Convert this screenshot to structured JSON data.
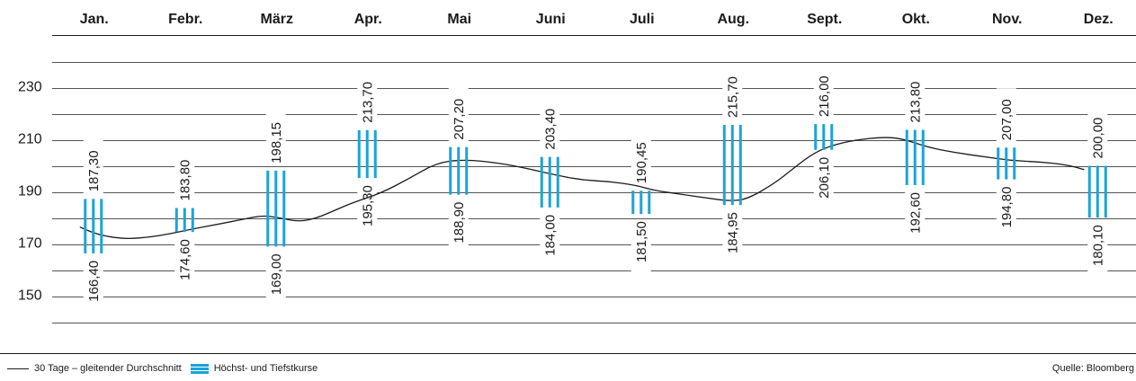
{
  "chart_data": {
    "type": "range-bar-with-line",
    "categories": [
      "Jan.",
      "Febr.",
      "März",
      "Apr.",
      "Mai",
      "Juni",
      "Juli",
      "Aug.",
      "Sept.",
      "Okt.",
      "Nov.",
      "Dez."
    ],
    "y_ticks": [
      230,
      210,
      190,
      170,
      150
    ],
    "ylim": [
      140,
      240
    ],
    "grid": true,
    "series": [
      {
        "name": "Höchst- und Tiefstkurse",
        "type": "range",
        "color": "#1aa4d8",
        "high": [
          187.3,
          183.8,
          198.15,
          213.7,
          207.2,
          203.4,
          190.45,
          215.7,
          216.0,
          213.8,
          207.0,
          200.0
        ],
        "low": [
          166.4,
          174.6,
          169.0,
          195.3,
          188.9,
          184.0,
          181.5,
          184.95,
          206.1,
          192.6,
          194.8,
          180.1
        ],
        "high_labels": [
          "187,30",
          "183,80",
          "198,15",
          "213,70",
          "207,20",
          "203,40",
          "190,45",
          "215,70",
          "216,00",
          "213,80",
          "207,00",
          "200,00"
        ],
        "low_labels": [
          "166,40",
          "174,60",
          "169,00",
          "195,30",
          "188,90",
          "184,00",
          "181,50",
          "184,95",
          "206,10",
          "192,60",
          "194,80",
          "180,10"
        ]
      },
      {
        "name": "30 Tage – gleitender Durchschnitt",
        "type": "line",
        "color": "#1a1a1a",
        "x": [
          0.0,
          0.2,
          0.5,
          0.8,
          1.0,
          1.2,
          1.5,
          1.8,
          2.0,
          2.2,
          2.4,
          2.6,
          2.8,
          3.0,
          3.3,
          3.6,
          3.9,
          4.2,
          4.6,
          4.9,
          5.2,
          5.5,
          5.8,
          6.1,
          6.3,
          6.6,
          6.9,
          7.1,
          7.3,
          7.6,
          7.8,
          8.0,
          8.2,
          8.5,
          8.8,
          9.0,
          9.3,
          9.6,
          9.9,
          10.2,
          10.5,
          10.8,
          11.0
        ],
        "values": [
          176.5,
          173.5,
          171.8,
          172.8,
          174.0,
          175.5,
          177.5,
          179.5,
          181.0,
          180.0,
          178.5,
          180.0,
          183.0,
          186.0,
          189.5,
          195.0,
          201.0,
          202.5,
          201.0,
          199.0,
          196.5,
          194.5,
          194.0,
          192.5,
          190.5,
          189.0,
          187.5,
          186.5,
          187.0,
          193.0,
          198.5,
          204.0,
          207.5,
          210.0,
          211.0,
          210.5,
          207.0,
          205.0,
          203.5,
          202.0,
          201.5,
          200.5,
          198.5
        ]
      }
    ]
  },
  "legend": {
    "line_label": "30 Tage – gleitender Durchschnitt",
    "bars_label": "Höchst- und Tiefstkurse"
  },
  "source": "Quelle: Bloomberg"
}
